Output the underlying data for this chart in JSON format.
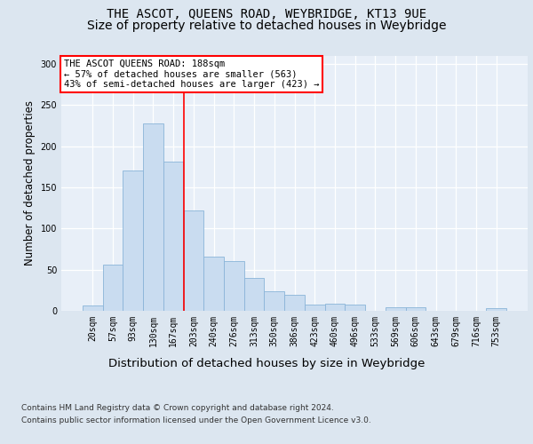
{
  "title1": "THE ASCOT, QUEENS ROAD, WEYBRIDGE, KT13 9UE",
  "title2": "Size of property relative to detached houses in Weybridge",
  "xlabel": "Distribution of detached houses by size in Weybridge",
  "ylabel": "Number of detached properties",
  "footnote1": "Contains HM Land Registry data © Crown copyright and database right 2024.",
  "footnote2": "Contains public sector information licensed under the Open Government Licence v3.0.",
  "bin_labels": [
    "20sqm",
    "57sqm",
    "93sqm",
    "130sqm",
    "167sqm",
    "203sqm",
    "240sqm",
    "276sqm",
    "313sqm",
    "350sqm",
    "386sqm",
    "423sqm",
    "460sqm",
    "496sqm",
    "533sqm",
    "569sqm",
    "606sqm",
    "643sqm",
    "679sqm",
    "716sqm",
    "753sqm"
  ],
  "bar_values": [
    7,
    56,
    170,
    228,
    181,
    122,
    66,
    60,
    40,
    24,
    19,
    8,
    9,
    8,
    0,
    4,
    4,
    0,
    0,
    0,
    3
  ],
  "bar_color": "#c9dcf0",
  "bar_edge_color": "#8ab4d8",
  "highlight_bin_index": 4,
  "highlight_line_color": "red",
  "annotation_text": "THE ASCOT QUEENS ROAD: 188sqm\n← 57% of detached houses are smaller (563)\n43% of semi-detached houses are larger (423) →",
  "annotation_box_color": "white",
  "annotation_box_edge": "red",
  "ylim": [
    0,
    310
  ],
  "yticks": [
    0,
    50,
    100,
    150,
    200,
    250,
    300
  ],
  "background_color": "#dce6f0",
  "plot_bg_color": "#e8eff8",
  "grid_color": "white",
  "title1_fontsize": 10,
  "title2_fontsize": 10,
  "tick_fontsize": 7,
  "ylabel_fontsize": 8.5,
  "xlabel_fontsize": 9.5,
  "footnote_fontsize": 6.5
}
